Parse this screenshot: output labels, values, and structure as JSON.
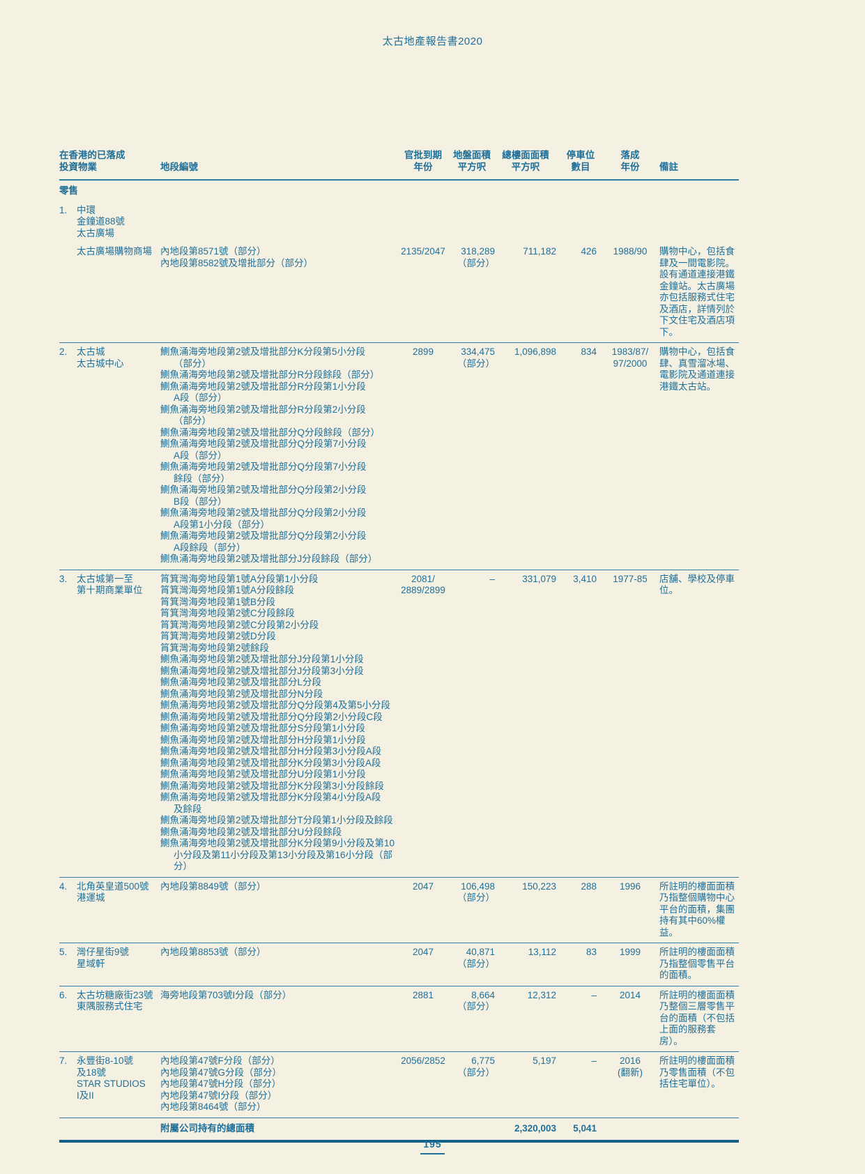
{
  "page": {
    "title": "太古地產報告書2020",
    "page_number": "195"
  },
  "table": {
    "headers": {
      "property": [
        "在香港的已落成",
        "投資物業"
      ],
      "lot": "地段編號",
      "lease": [
        "官批到期",
        "年份"
      ],
      "site": [
        "地盤面積",
        "平方呎"
      ],
      "gfa": [
        "總樓面面積",
        "平方呎"
      ],
      "parking": [
        "停車位",
        "數目"
      ],
      "completed": [
        "落成",
        "年份"
      ],
      "remarks": "備註"
    },
    "section": "零售",
    "rows": [
      {
        "num": "1.",
        "name": [
          "中環",
          "金鐘道88號",
          "太古廣場"
        ],
        "sub": {
          "name": "太古廣場購物商場",
          "lots": [
            "內地段第8571號（部分）",
            "內地段第8582號及增批部分（部分）"
          ],
          "lease": [
            "2135/2047"
          ],
          "site": [
            "318,289",
            "（部分）"
          ],
          "gfa": "711,182",
          "parking": "426",
          "completed": [
            "1988/90"
          ],
          "remarks": "購物中心，包括食肆及一間電影院。設有通道連接港鐵金鐘站。太古廣場亦包括服務式住宅及酒店，詳情列於下文住宅及酒店項下。"
        }
      },
      {
        "num": "2.",
        "name": [
          "太古城",
          "太古城中心"
        ],
        "lots": [
          "鰂魚涌海旁地段第2號及增批部分K分段第5小分段\n（部分）",
          "鰂魚涌海旁地段第2號及增批部分R分段餘段（部分）",
          "鰂魚涌海旁地段第2號及增批部分R分段第1小分段\nA段（部分）",
          "鰂魚涌海旁地段第2號及增批部分R分段第2小分段\n（部分）",
          "鰂魚涌海旁地段第2號及增批部分Q分段餘段（部分）",
          "鰂魚涌海旁地段第2號及增批部分Q分段第7小分段\nA段（部分）",
          "鰂魚涌海旁地段第2號及增批部分Q分段第7小分段\n餘段（部分）",
          "鰂魚涌海旁地段第2號及增批部分Q分段第2小分段\nB段（部分）",
          "鰂魚涌海旁地段第2號及增批部分Q分段第2小分段\nA段第1小分段（部分）",
          "鰂魚涌海旁地段第2號及增批部分Q分段第2小分段\nA段餘段（部分）",
          "鰂魚涌海旁地段第2號及增批部分J分段餘段（部分）"
        ],
        "lease": [
          "2899"
        ],
        "site": [
          "334,475",
          "（部分）"
        ],
        "gfa": "1,096,898",
        "parking": "834",
        "completed": [
          "1983/87/",
          "97/2000"
        ],
        "remarks": "購物中心，包括食肆、真雪溜冰場、電影院及通道連接港鐵太古站。"
      },
      {
        "num": "3.",
        "name": [
          "太古城第一至",
          "第十期商業單位"
        ],
        "lots": [
          "筲箕灣海旁地段第1號A分段第1小分段",
          "筲箕灣海旁地段第1號A分段餘段",
          "筲箕灣海旁地段第1號B分段",
          "筲箕灣海旁地段第2號C分段餘段",
          "筲箕灣海旁地段第2號C分段第2小分段",
          "筲箕灣海旁地段第2號D分段",
          "筲箕灣海旁地段第2號餘段",
          "鰂魚涌海旁地段第2號及增批部分J分段第1小分段",
          "鰂魚涌海旁地段第2號及增批部分J分段第3小分段",
          "鰂魚涌海旁地段第2號及增批部分L分段",
          "鰂魚涌海旁地段第2號及增批部分N分段",
          "鰂魚涌海旁地段第2號及增批部分Q分段第4及第5小分段",
          "鰂魚涌海旁地段第2號及增批部分Q分段第2小分段C段",
          "鰂魚涌海旁地段第2號及增批部分S分段第1小分段",
          "鰂魚涌海旁地段第2號及增批部分H分段第1小分段",
          "鰂魚涌海旁地段第2號及增批部分H分段第3小分段A段",
          "鰂魚涌海旁地段第2號及增批部分K分段第3小分段A段",
          "鰂魚涌海旁地段第2號及增批部分U分段第1小分段",
          "鰂魚涌海旁地段第2號及增批部分K分段第3小分段餘段",
          "鰂魚涌海旁地段第2號及增批部分K分段第4小分段A段\n及餘段",
          "鰂魚涌海旁地段第2號及增批部分T分段第1小分段及餘段",
          "鰂魚涌海旁地段第2號及增批部分U分段餘段",
          "鰂魚涌海旁地段第2號及增批部分K分段第9小分段及第10\n小分段及第11小分段及第13小分段及第16小分段（部分）"
        ],
        "lease": [
          "2081/",
          "2889/2899"
        ],
        "site": [
          "–"
        ],
        "gfa": "331,079",
        "parking": "3,410",
        "completed": [
          "1977-85"
        ],
        "remarks": "店舖、學校及停車位。"
      },
      {
        "num": "4.",
        "name": [
          "北角英皇道500號",
          "港運城"
        ],
        "lots": [
          "內地段第8849號（部分）"
        ],
        "lease": [
          "2047"
        ],
        "site": [
          "106,498",
          "（部分）"
        ],
        "gfa": "150,223",
        "parking": "288",
        "completed": [
          "1996"
        ],
        "remarks": "所註明的樓面面積乃指整個購物中心平台的面積，集團持有其中60%權益。"
      },
      {
        "num": "5.",
        "name": [
          "灣仔星街9號",
          "星域軒"
        ],
        "lots": [
          "內地段第8853號（部分）"
        ],
        "lease": [
          "2047"
        ],
        "site": [
          "40,871",
          "（部分）"
        ],
        "gfa": "13,112",
        "parking": "83",
        "completed": [
          "1999"
        ],
        "remarks": "所註明的樓面面積乃指整個零售平台的面積。"
      },
      {
        "num": "6.",
        "name": [
          "太古坊糖廠街23號",
          "東隅服務式住宅"
        ],
        "lots": [
          "海旁地段第703號I分段（部分）"
        ],
        "lease": [
          "2881"
        ],
        "site": [
          "8,664",
          "（部分）"
        ],
        "gfa": "12,312",
        "parking": "–",
        "completed": [
          "2014"
        ],
        "remarks": "所註明的樓面面積乃整個三層零售平台的面積（不包括上面的服務套房）。"
      },
      {
        "num": "7.",
        "name": [
          "永豐街8-10號",
          "及18號",
          "STAR STUDIOS",
          "I及II"
        ],
        "lots": [
          "內地段第47號F分段（部分）",
          "內地段第47號G分段（部分）",
          "內地段第47號H分段（部分）",
          "內地段第47號I分段（部分）",
          "內地段第8464號（部分）"
        ],
        "lease": [
          "2056/2852"
        ],
        "site": [
          "6,775",
          "（部分）"
        ],
        "gfa": "5,197",
        "parking": "–",
        "completed": [
          "2016",
          "(翻新)"
        ],
        "remarks": "所註明的樓面面積乃零售面積（不包括住宅單位）。"
      }
    ],
    "total": {
      "label": "附屬公司持有的總面積",
      "gfa": "2,320,003",
      "parking": "5,041"
    }
  },
  "colors": {
    "background": "#f5f1e2",
    "text": "#1e6f99",
    "rule": "#2e7ea6",
    "thick_rule": "#0f6189"
  }
}
